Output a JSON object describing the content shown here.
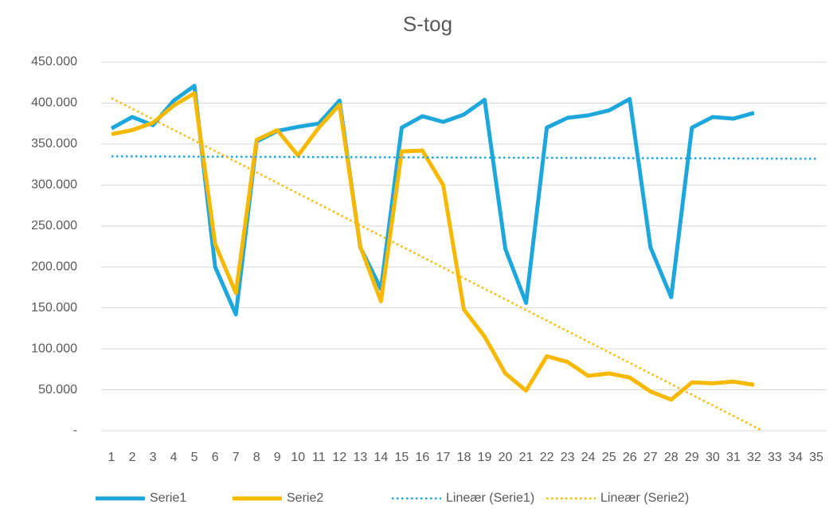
{
  "chart_data": {
    "type": "line",
    "title": "S-tog",
    "categories": [
      1,
      2,
      3,
      4,
      5,
      6,
      7,
      8,
      9,
      10,
      11,
      12,
      13,
      14,
      15,
      16,
      17,
      18,
      19,
      20,
      21,
      22,
      23,
      24,
      25,
      26,
      27,
      28,
      29,
      30,
      31,
      32,
      33,
      34,
      35
    ],
    "series": [
      {
        "name": "Serie1",
        "color": "#1ea7dc",
        "values": [
          369000,
          383000,
          373000,
          403000,
          421000,
          200000,
          142000,
          353000,
          366000,
          371000,
          375000,
          403000,
          224000,
          173000,
          370000,
          384000,
          377000,
          386000,
          404000,
          222000,
          156000,
          370000,
          382000,
          385000,
          391000,
          405000,
          224000,
          163000,
          370000,
          383000,
          381000,
          388000,
          null,
          null,
          null
        ]
      },
      {
        "name": "Serie2",
        "color": "#f7b900",
        "values": [
          362000,
          367000,
          376000,
          397000,
          412000,
          228000,
          168000,
          355000,
          367000,
          336000,
          370000,
          398000,
          225000,
          158000,
          341000,
          342000,
          300000,
          148000,
          115000,
          70000,
          49000,
          91000,
          84000,
          67000,
          70000,
          65000,
          48000,
          38000,
          59000,
          58000,
          60000,
          56000,
          null,
          null,
          null
        ]
      },
      {
        "name": "Lineær (Serie1)",
        "color": "#1ea7dc",
        "dotted": true,
        "x": [
          1,
          35
        ],
        "values": [
          335000,
          332000
        ]
      },
      {
        "name": "Lineær (Serie2)",
        "color": "#f7b900",
        "dotted": true,
        "x": [
          1,
          32.4
        ],
        "values": [
          406000,
          0
        ]
      }
    ],
    "ylim": [
      0,
      450000
    ],
    "yticks": [
      {
        "value": 0,
        "label": "-"
      },
      {
        "value": 50000,
        "label": "50.000"
      },
      {
        "value": 100000,
        "label": "100.000"
      },
      {
        "value": 150000,
        "label": "150.000"
      },
      {
        "value": 200000,
        "label": "200.000"
      },
      {
        "value": 250000,
        "label": "250.000"
      },
      {
        "value": 300000,
        "label": "300.000"
      },
      {
        "value": 350000,
        "label": "350.000"
      },
      {
        "value": 400000,
        "label": "400.000"
      },
      {
        "value": 450000,
        "label": "450.000"
      }
    ],
    "grid": true,
    "legend": "bottom"
  }
}
